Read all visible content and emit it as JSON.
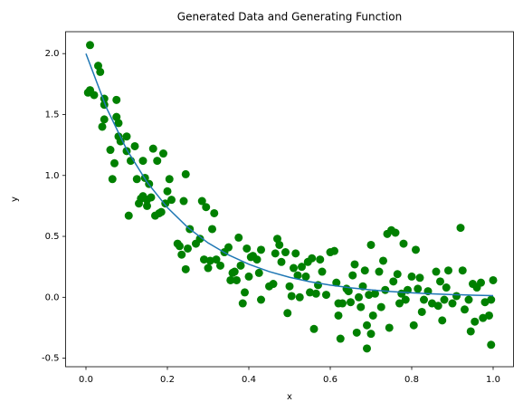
{
  "chart_data": {
    "type": "scatter",
    "title": "Generated Data and Generating Function",
    "x_label": "x",
    "y_label": "y",
    "xlim": [
      -0.05,
      1.05
    ],
    "ylim": [
      -0.57,
      2.18
    ],
    "xticks": [
      {
        "value": 0,
        "label": "0.0"
      },
      0.2,
      0.4,
      0.6,
      0.8,
      {
        "value": 1,
        "label": "1.0"
      }
    ],
    "yticks": [
      -0.5,
      {
        "value": 0,
        "label": "0.0"
      },
      0.5,
      {
        "value": 1,
        "label": "1.0"
      },
      1.5,
      {
        "value": 2,
        "label": "2.0"
      }
    ],
    "grid": false,
    "series": [
      {
        "type": "scatter",
        "color": "#008000",
        "x": [
          0.01,
          0.005,
          0.01,
          0.02,
          0.03,
          0.035,
          0.04,
          0.045,
          0.045,
          0.045,
          0.06,
          0.065,
          0.07,
          0.075,
          0.075,
          0.08,
          0.08,
          0.085,
          0.1,
          0.1,
          0.105,
          0.11,
          0.12,
          0.125,
          0.13,
          0.135,
          0.14,
          0.14,
          0.145,
          0.15,
          0.15,
          0.155,
          0.16,
          0.165,
          0.17,
          0.175,
          0.18,
          0.185,
          0.19,
          0.195,
          0.2,
          0.205,
          0.21,
          0.225,
          0.23,
          0.235,
          0.24,
          0.245,
          0.245,
          0.25,
          0.255,
          0.27,
          0.28,
          0.285,
          0.29,
          0.295,
          0.3,
          0.305,
          0.31,
          0.315,
          0.32,
          0.33,
          0.34,
          0.35,
          0.355,
          0.36,
          0.365,
          0.37,
          0.375,
          0.38,
          0.385,
          0.39,
          0.395,
          0.4,
          0.405,
          0.41,
          0.42,
          0.425,
          0.43,
          0.43,
          0.45,
          0.46,
          0.465,
          0.47,
          0.475,
          0.48,
          0.49,
          0.495,
          0.5,
          0.505,
          0.51,
          0.515,
          0.52,
          0.525,
          0.53,
          0.54,
          0.545,
          0.55,
          0.555,
          0.56,
          0.565,
          0.57,
          0.575,
          0.58,
          0.59,
          0.6,
          0.61,
          0.615,
          0.62,
          0.62,
          0.625,
          0.63,
          0.64,
          0.645,
          0.65,
          0.655,
          0.66,
          0.665,
          0.67,
          0.675,
          0.68,
          0.685,
          0.69,
          0.69,
          0.695,
          0.7,
          0.7,
          0.705,
          0.71,
          0.72,
          0.725,
          0.73,
          0.735,
          0.74,
          0.745,
          0.75,
          0.755,
          0.76,
          0.765,
          0.77,
          0.775,
          0.78,
          0.785,
          0.79,
          0.8,
          0.805,
          0.81,
          0.815,
          0.82,
          0.825,
          0.83,
          0.84,
          0.85,
          0.86,
          0.865,
          0.87,
          0.875,
          0.88,
          0.885,
          0.89,
          0.9,
          0.91,
          0.92,
          0.925,
          0.93,
          0.94,
          0.945,
          0.95,
          0.955,
          0.96,
          0.97,
          0.975,
          0.98,
          0.99,
          0.995,
          1.0,
          0.995
        ],
        "values": [
          2.07,
          1.68,
          1.7,
          1.66,
          1.9,
          1.85,
          1.4,
          1.58,
          1.63,
          1.46,
          1.21,
          0.97,
          1.1,
          1.62,
          1.48,
          1.43,
          1.32,
          1.28,
          1.32,
          1.2,
          0.67,
          1.12,
          1.24,
          0.97,
          0.77,
          0.81,
          1.12,
          0.83,
          0.98,
          0.8,
          0.75,
          0.93,
          0.82,
          1.22,
          0.67,
          1.12,
          0.69,
          0.7,
          1.18,
          0.77,
          0.87,
          0.97,
          0.8,
          0.44,
          0.42,
          0.35,
          0.79,
          1.01,
          0.23,
          0.4,
          0.56,
          0.44,
          0.48,
          0.79,
          0.31,
          0.74,
          0.24,
          0.3,
          0.56,
          0.69,
          0.31,
          0.26,
          0.37,
          0.41,
          0.14,
          0.2,
          0.21,
          0.14,
          0.49,
          0.26,
          -0.05,
          0.04,
          0.4,
          0.17,
          0.33,
          0.34,
          0.31,
          0.2,
          0.39,
          -0.02,
          0.09,
          0.11,
          0.36,
          0.48,
          0.43,
          0.29,
          0.37,
          -0.13,
          0.09,
          0.01,
          0.24,
          0.36,
          0.18,
          0.0,
          0.25,
          0.17,
          0.29,
          0.04,
          0.32,
          -0.26,
          0.03,
          0.1,
          0.31,
          0.21,
          0.02,
          0.37,
          0.38,
          0.12,
          -0.05,
          -0.15,
          -0.34,
          -0.05,
          0.07,
          0.05,
          -0.04,
          0.18,
          0.27,
          -0.29,
          0.0,
          -0.08,
          0.09,
          0.22,
          -0.42,
          -0.23,
          0.02,
          0.43,
          -0.3,
          -0.15,
          0.03,
          0.21,
          -0.08,
          0.3,
          0.06,
          0.52,
          -0.25,
          0.55,
          0.13,
          0.53,
          0.19,
          -0.05,
          0.03,
          0.44,
          -0.02,
          0.06,
          0.17,
          -0.23,
          0.39,
          0.07,
          0.16,
          -0.12,
          -0.02,
          0.05,
          -0.05,
          0.21,
          -0.07,
          0.13,
          -0.19,
          -0.02,
          0.08,
          0.22,
          -0.05,
          0.01,
          0.57,
          0.22,
          -0.1,
          -0.02,
          -0.28,
          0.11,
          -0.2,
          0.08,
          0.12,
          -0.17,
          -0.04,
          -0.15,
          -0.39,
          0.14,
          -0.02
        ]
      },
      {
        "type": "line",
        "color": "#1f77b4",
        "x": [
          0,
          0.05,
          0.1,
          0.15,
          0.2,
          0.25,
          0.3,
          0.35,
          0.4,
          0.45,
          0.5,
          0.55,
          0.6,
          0.65,
          0.7,
          0.75,
          0.8,
          0.85,
          0.9,
          0.95,
          1.0
        ],
        "values": [
          2.0,
          1.558,
          1.213,
          0.945,
          0.736,
          0.573,
          0.446,
          0.348,
          0.271,
          0.211,
          0.164,
          0.128,
          0.0996,
          0.0776,
          0.0604,
          0.047,
          0.0366,
          0.0285,
          0.0222,
          0.0173,
          0.0135
        ]
      }
    ]
  }
}
